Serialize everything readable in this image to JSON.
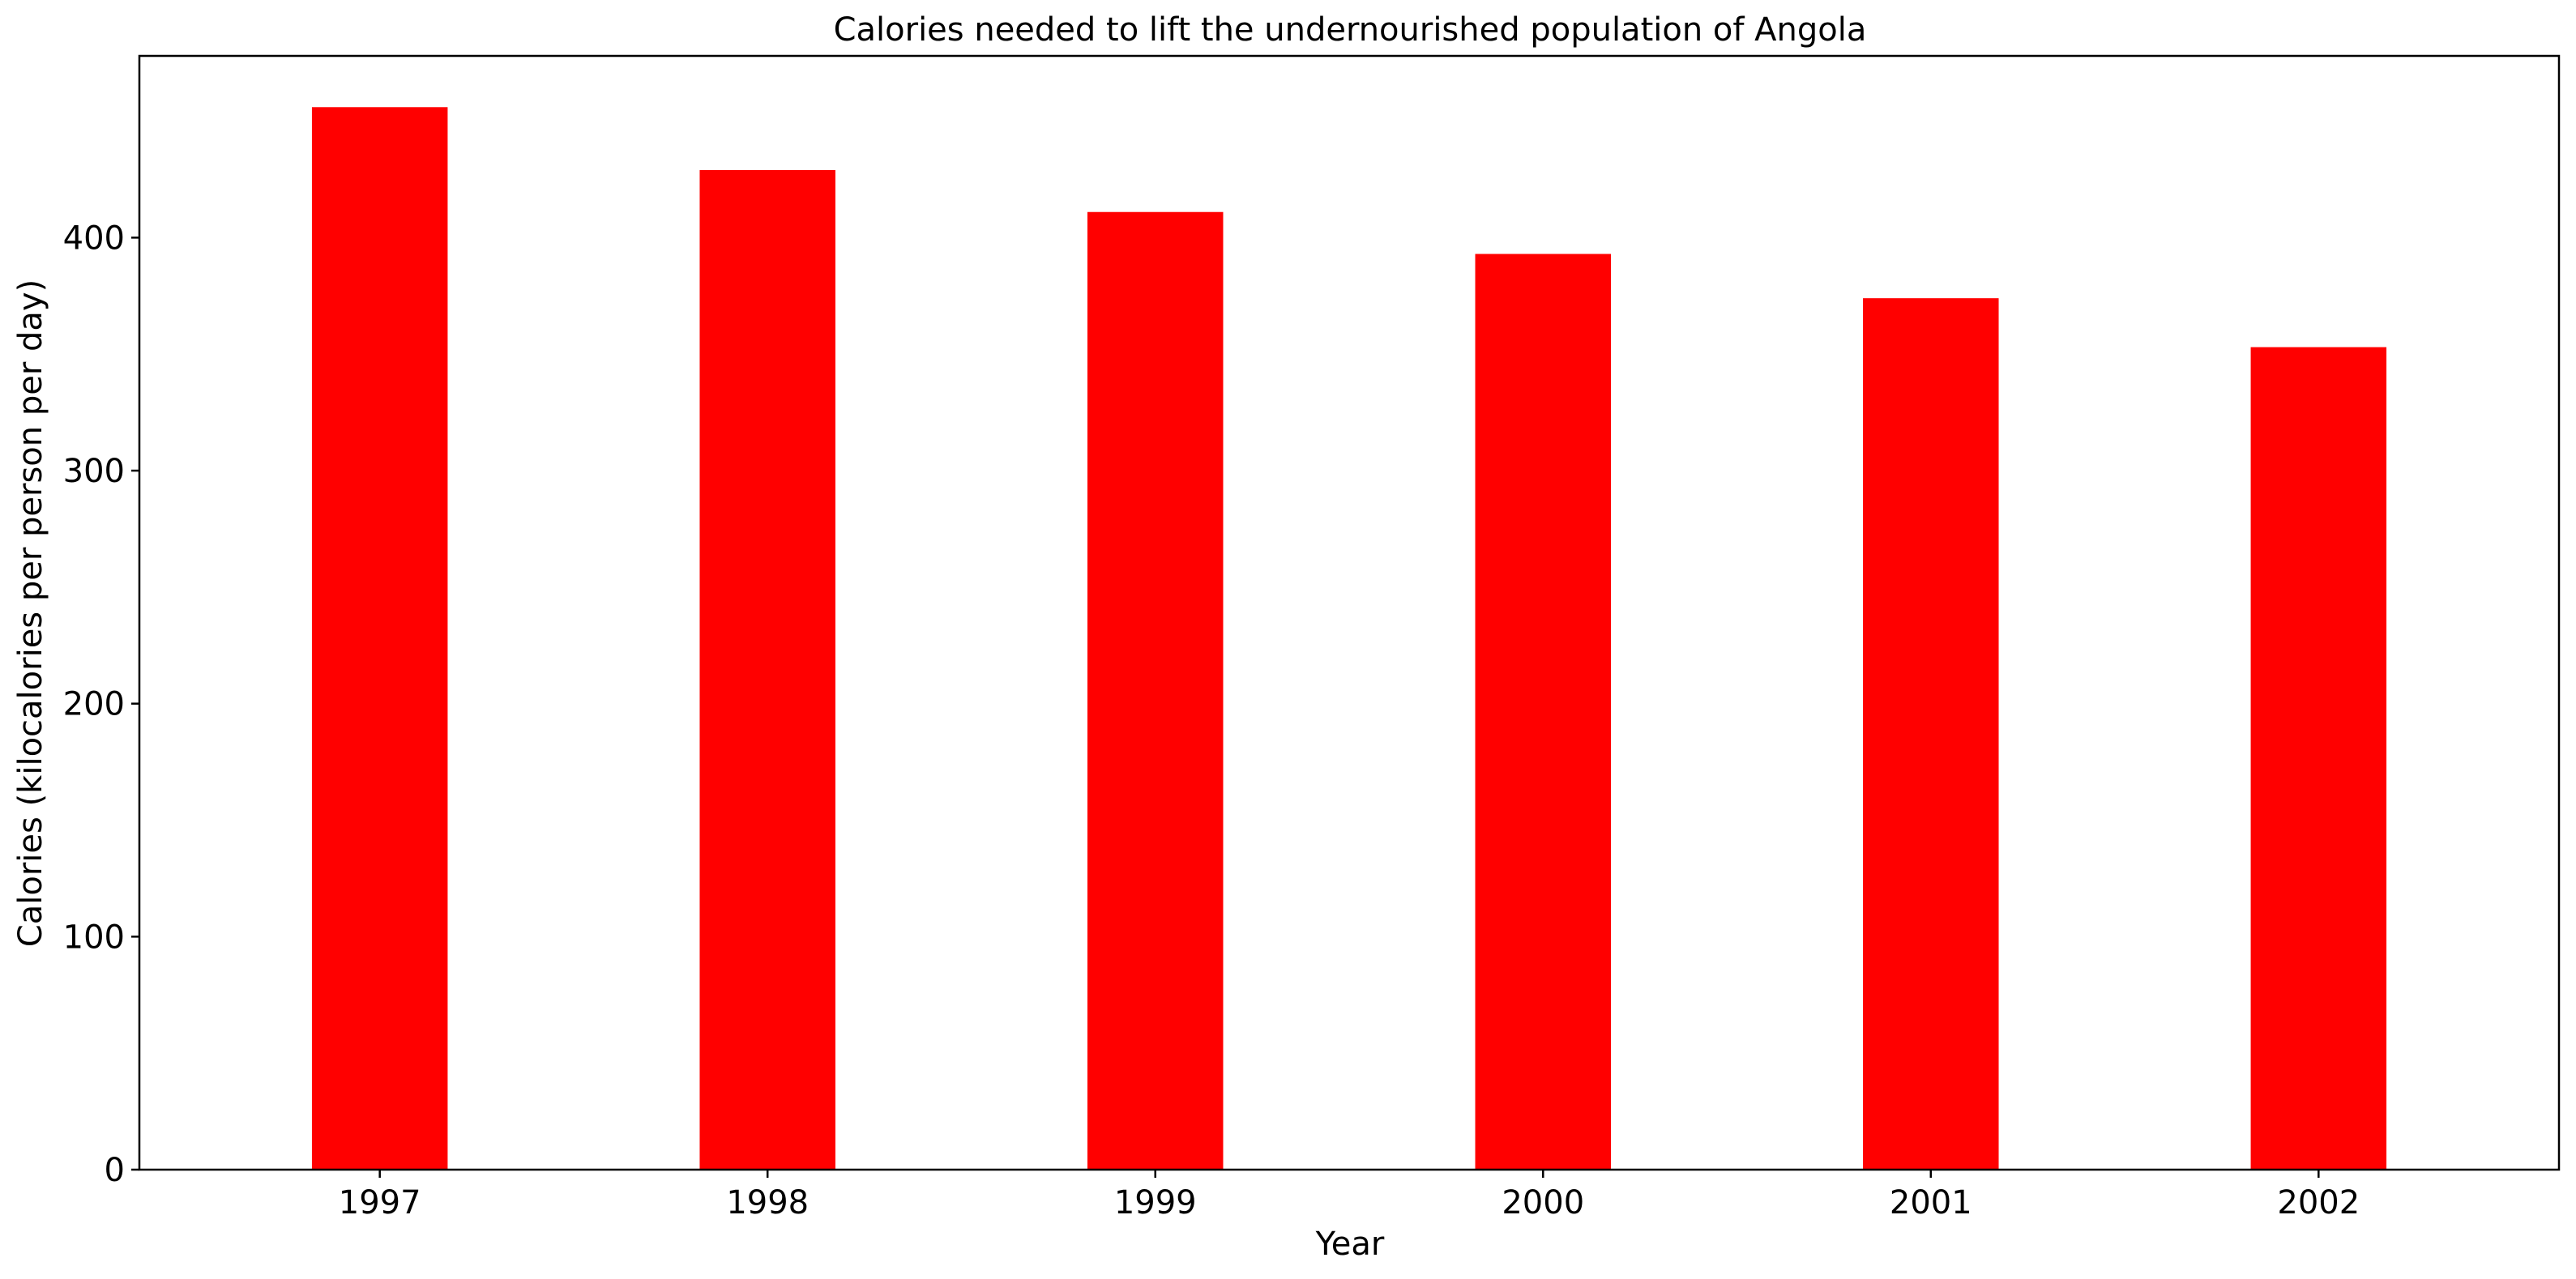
{
  "chart_data": {
    "type": "bar",
    "title": "Calories needed to lift the undernourished population of Angola",
    "xlabel": "Year",
    "ylabel": "Calories (kilocalories per person per day)",
    "categories": [
      "1997",
      "1998",
      "1999",
      "2000",
      "2001",
      "2002"
    ],
    "values": [
      456,
      429,
      411,
      393,
      374,
      353
    ],
    "ylim": [
      0,
      478
    ],
    "yticks": [
      0,
      100,
      200,
      300,
      400
    ],
    "bar_color": "#ff0000",
    "grid": false,
    "legend": "none"
  }
}
